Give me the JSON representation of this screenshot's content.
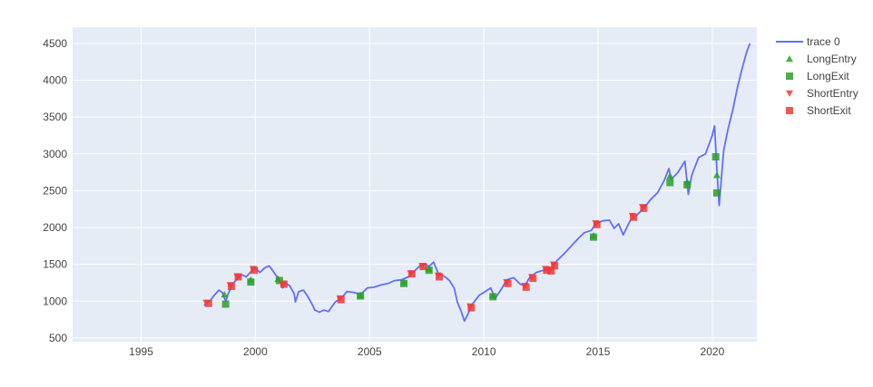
{
  "chart_data": {
    "type": "scatter",
    "title": "",
    "xlabel": "",
    "ylabel": "",
    "xlim": [
      1992.0,
      2021.95
    ],
    "ylim": [
      450,
      4720
    ],
    "x_ticks": [
      1995,
      2000,
      2005,
      2010,
      2015,
      2020
    ],
    "x_tick_labels": [
      "1995",
      "2000",
      "2005",
      "2010",
      "2015",
      "2020"
    ],
    "y_ticks": [
      500,
      1000,
      1500,
      2000,
      2500,
      3000,
      3500,
      4000,
      4500
    ],
    "y_tick_labels": [
      "500",
      "1000",
      "1500",
      "2000",
      "2500",
      "3000",
      "3500",
      "4000",
      "4500"
    ],
    "grid": true,
    "legend_position": "right",
    "colors": {
      "trace0": "#636efa",
      "long": "#2ca02c",
      "short": "#ef3b3b",
      "plot_bg": "#e5ecf6",
      "grid": "#ffffff"
    },
    "series": [
      {
        "name": "trace 0",
        "mode": "line",
        "x": [
          1997.75,
          1997.9,
          1998.0,
          1998.2,
          1998.4,
          1998.55,
          1998.7,
          1998.8,
          1999.0,
          1999.2,
          1999.4,
          1999.6,
          1999.8,
          2000.0,
          2000.2,
          2000.4,
          2000.6,
          2000.75,
          2000.9,
          2001.0,
          2001.2,
          2001.3,
          2001.5,
          2001.7,
          2001.75,
          2001.9,
          2002.1,
          2002.3,
          2002.5,
          2002.6,
          2002.8,
          2003.0,
          2003.2,
          2003.5,
          2003.8,
          2004.0,
          2004.3,
          2004.6,
          2004.9,
          2005.2,
          2005.5,
          2005.8,
          2006.1,
          2006.4,
          2006.7,
          2007.0,
          2007.2,
          2007.4,
          2007.6,
          2007.8,
          2008.0,
          2008.3,
          2008.5,
          2008.7,
          2008.85,
          2009.0,
          2009.15,
          2009.3,
          2009.5,
          2009.8,
          2010.0,
          2010.3,
          2010.5,
          2010.8,
          2011.0,
          2011.3,
          2011.6,
          2011.8,
          2012.0,
          2012.3,
          2012.6,
          2012.9,
          2013.2,
          2013.5,
          2013.8,
          2014.1,
          2014.4,
          2014.7,
          2014.9,
          2015.2,
          2015.5,
          2015.7,
          2015.9,
          2016.1,
          2016.4,
          2016.7,
          2017.0,
          2017.3,
          2017.6,
          2017.9,
          2018.1,
          2018.2,
          2018.5,
          2018.8,
          2018.95,
          2019.1,
          2019.4,
          2019.7,
          2020.0,
          2020.1,
          2020.2,
          2020.3,
          2020.5,
          2020.7,
          2020.9,
          2021.1,
          2021.3,
          2021.5,
          2021.65
        ],
        "y": [
          940,
          980,
          1000,
          1080,
          1150,
          1120,
          1000,
          1090,
          1230,
          1300,
          1360,
          1330,
          1400,
          1450,
          1390,
          1450,
          1480,
          1420,
          1350,
          1320,
          1180,
          1250,
          1210,
          1100,
          990,
          1130,
          1150,
          1060,
          950,
          880,
          850,
          880,
          860,
          990,
          1050,
          1130,
          1120,
          1090,
          1180,
          1190,
          1220,
          1240,
          1280,
          1290,
          1330,
          1420,
          1480,
          1510,
          1470,
          1530,
          1380,
          1330,
          1280,
          1180,
          980,
          870,
          730,
          820,
          960,
          1080,
          1120,
          1180,
          1040,
          1180,
          1290,
          1320,
          1230,
          1210,
          1320,
          1390,
          1420,
          1410,
          1550,
          1640,
          1740,
          1840,
          1930,
          1960,
          2050,
          2090,
          2100,
          1990,
          2050,
          1900,
          2090,
          2170,
          2260,
          2380,
          2470,
          2640,
          2800,
          2650,
          2750,
          2900,
          2450,
          2710,
          2950,
          3000,
          3250,
          3380,
          2800,
          2300,
          3050,
          3350,
          3600,
          3900,
          4150,
          4380,
          4500
        ]
      },
      {
        "name": "LongEntry",
        "mode": "markers",
        "marker": "triangle-up",
        "x": [
          1998.65,
          1999.8,
          2001.0,
          2004.6,
          2006.5,
          2007.6,
          2010.4,
          2014.8,
          2018.15,
          2018.9,
          2020.2
        ],
        "y": [
          1090,
          1290,
          1300,
          1080,
          1260,
          1440,
          1080,
          1890,
          2700,
          2620,
          2710
        ]
      },
      {
        "name": "LongExit",
        "mode": "markers",
        "marker": "square",
        "x": [
          1998.7,
          1999.8,
          2001.05,
          2004.6,
          2006.5,
          2007.6,
          2010.4,
          2014.8,
          2018.15,
          2018.9,
          2020.15,
          2020.2
        ],
        "y": [
          960,
          1260,
          1280,
          1070,
          1240,
          1420,
          1060,
          1870,
          2610,
          2580,
          2960,
          2470
        ]
      },
      {
        "name": "ShortEntry",
        "mode": "markers",
        "marker": "triangle-down",
        "x": [
          1997.85,
          1998.9,
          1999.2,
          1999.9,
          2001.2,
          2003.7,
          2006.8,
          2007.3,
          2008.0,
          2009.4,
          2011.0,
          2011.8,
          2012.1,
          2012.7,
          2012.9,
          2013.05,
          2014.9,
          2016.5,
          2016.95
        ],
        "y": [
          980,
          1220,
          1340,
          1440,
          1240,
          1040,
          1380,
          1480,
          1350,
          930,
          1260,
          1210,
          1330,
          1440,
          1430,
          1500,
          2060,
          2160,
          2280
        ]
      },
      {
        "name": "ShortExit",
        "mode": "markers",
        "marker": "square",
        "x": [
          1997.95,
          1998.95,
          1999.25,
          1999.95,
          2001.25,
          2003.75,
          2006.85,
          2007.35,
          2008.05,
          2009.45,
          2011.05,
          2011.85,
          2012.15,
          2012.75,
          2012.95,
          2013.1,
          2014.95,
          2016.55,
          2017.0
        ],
        "y": [
          970,
          1200,
          1330,
          1420,
          1230,
          1020,
          1370,
          1470,
          1330,
          910,
          1240,
          1190,
          1310,
          1420,
          1410,
          1480,
          2040,
          2140,
          2260
        ]
      }
    ]
  }
}
